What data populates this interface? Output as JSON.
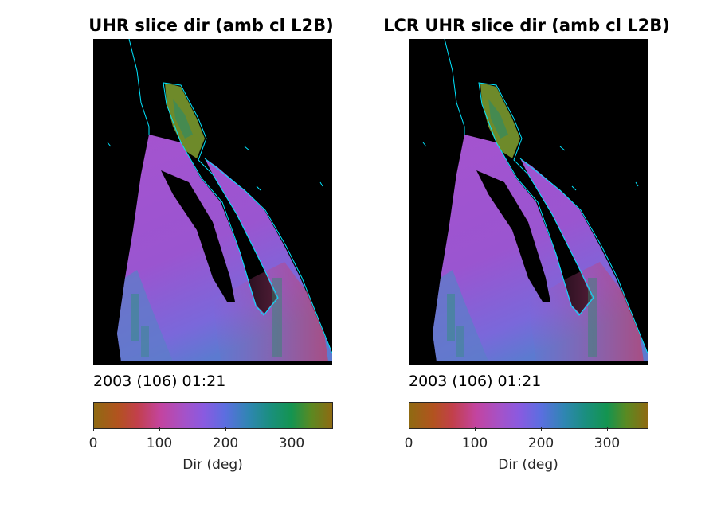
{
  "panels": [
    {
      "title": "UHR slice dir (amb cl L2B)",
      "timestamp": "2003 (106) 01:21",
      "colorbar": {
        "ticks": [
          "0",
          "100",
          "200",
          "300"
        ],
        "tick_values": [
          0,
          100,
          200,
          300
        ],
        "range": [
          0,
          360
        ],
        "label": "Dir (deg)"
      }
    },
    {
      "title": "LCR UHR slice dir (amb cl L2B)",
      "timestamp": "2003 (106) 01:21",
      "colorbar": {
        "ticks": [
          "0",
          "100",
          "200",
          "300"
        ],
        "tick_values": [
          0,
          100,
          200,
          300
        ],
        "range": [
          0,
          360
        ],
        "label": "Dir (deg)"
      }
    }
  ],
  "colors": {
    "background": "#000000",
    "coastline": "#00e5ff",
    "ocean_main": "#9b55cc",
    "ocean_south": "#6a74d8",
    "gulf_north": "#6e8a2a"
  }
}
